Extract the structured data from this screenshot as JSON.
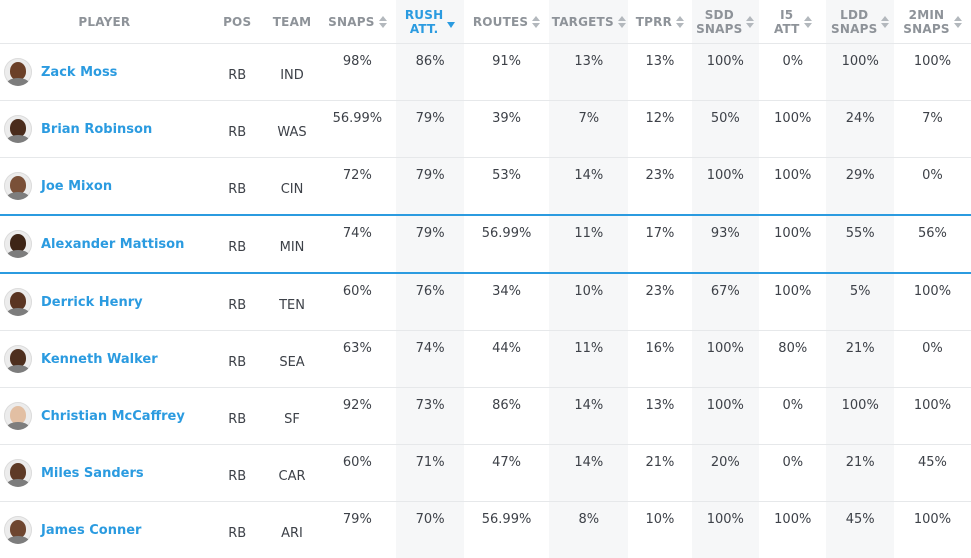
{
  "columns": [
    {
      "key": "player",
      "label": "PLAYER",
      "sortable": false
    },
    {
      "key": "pos",
      "label": "POS",
      "sortable": false
    },
    {
      "key": "team",
      "label": "TEAM",
      "sortable": false
    },
    {
      "key": "snaps",
      "label": "SNAPS",
      "sortable": true
    },
    {
      "key": "rush_att",
      "label": "RUSH ATT.",
      "sortable": true,
      "sorted": "desc"
    },
    {
      "key": "routes",
      "label": "ROUTES",
      "sortable": true
    },
    {
      "key": "targets",
      "label": "TARGETS",
      "sortable": true
    },
    {
      "key": "tprr",
      "label": "TPRR",
      "sortable": true
    },
    {
      "key": "sdd_snaps",
      "label": "SDD SNAPS",
      "sortable": true
    },
    {
      "key": "i5_att",
      "label": "I5 ATT",
      "sortable": true
    },
    {
      "key": "ldd_snaps",
      "label": "LDD SNAPS",
      "sortable": true
    },
    {
      "key": "twomin_snaps",
      "label": "2MIN SNAPS",
      "sortable": true
    }
  ],
  "accent_color": "#2b9be0",
  "highlighted_row": "Alexander Mattison",
  "rows": [
    {
      "player": "Zack Moss",
      "pos": "RB",
      "team": "IND",
      "snaps": "98%",
      "rush_att": "86%",
      "routes": "91%",
      "targets": "13%",
      "tprr": "13%",
      "sdd_snaps": "100%",
      "i5_att": "0%",
      "ldd_snaps": "100%",
      "twomin_snaps": "100%",
      "skin": "#6b4028"
    },
    {
      "player": "Brian Robinson",
      "pos": "RB",
      "team": "WAS",
      "snaps": "56.99%",
      "rush_att": "79%",
      "routes": "39%",
      "targets": "7%",
      "tprr": "12%",
      "sdd_snaps": "50%",
      "i5_att": "100%",
      "ldd_snaps": "24%",
      "twomin_snaps": "7%",
      "skin": "#4a2c1c"
    },
    {
      "player": "Joe Mixon",
      "pos": "RB",
      "team": "CIN",
      "snaps": "72%",
      "rush_att": "79%",
      "routes": "53%",
      "targets": "14%",
      "tprr": "23%",
      "sdd_snaps": "100%",
      "i5_att": "100%",
      "ldd_snaps": "29%",
      "twomin_snaps": "0%",
      "skin": "#7a5038"
    },
    {
      "player": "Alexander Mattison",
      "pos": "RB",
      "team": "MIN",
      "snaps": "74%",
      "rush_att": "79%",
      "routes": "56.99%",
      "targets": "11%",
      "tprr": "17%",
      "sdd_snaps": "93%",
      "i5_att": "100%",
      "ldd_snaps": "55%",
      "twomin_snaps": "56%",
      "skin": "#3e2516"
    },
    {
      "player": "Derrick Henry",
      "pos": "RB",
      "team": "TEN",
      "snaps": "60%",
      "rush_att": "76%",
      "routes": "34%",
      "targets": "10%",
      "tprr": "23%",
      "sdd_snaps": "67%",
      "i5_att": "100%",
      "ldd_snaps": "5%",
      "twomin_snaps": "100%",
      "skin": "#5a3522"
    },
    {
      "player": "Kenneth Walker",
      "pos": "RB",
      "team": "SEA",
      "snaps": "63%",
      "rush_att": "74%",
      "routes": "44%",
      "targets": "11%",
      "tprr": "16%",
      "sdd_snaps": "100%",
      "i5_att": "80%",
      "ldd_snaps": "21%",
      "twomin_snaps": "0%",
      "skin": "#4e2f1e"
    },
    {
      "player": "Christian McCaffrey",
      "pos": "RB",
      "team": "SF",
      "snaps": "92%",
      "rush_att": "73%",
      "routes": "86%",
      "targets": "14%",
      "tprr": "13%",
      "sdd_snaps": "100%",
      "i5_att": "0%",
      "ldd_snaps": "100%",
      "twomin_snaps": "100%",
      "skin": "#e2bfa3"
    },
    {
      "player": "Miles Sanders",
      "pos": "RB",
      "team": "CAR",
      "snaps": "60%",
      "rush_att": "71%",
      "routes": "47%",
      "targets": "14%",
      "tprr": "21%",
      "sdd_snaps": "20%",
      "i5_att": "0%",
      "ldd_snaps": "21%",
      "twomin_snaps": "45%",
      "skin": "#5e3a26"
    },
    {
      "player": "James Conner",
      "pos": "RB",
      "team": "ARI",
      "snaps": "79%",
      "rush_att": "70%",
      "routes": "56.99%",
      "targets": "8%",
      "tprr": "10%",
      "sdd_snaps": "100%",
      "i5_att": "100%",
      "ldd_snaps": "45%",
      "twomin_snaps": "100%",
      "skin": "#6e4630"
    }
  ]
}
